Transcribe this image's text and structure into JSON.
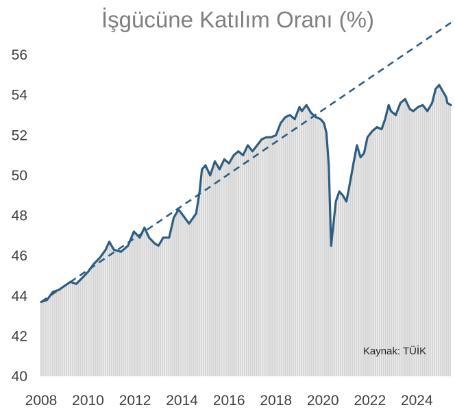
{
  "chart_data": {
    "type": "area",
    "title": "İşgücüne Katılım Oranı (%)",
    "xlabel": "",
    "ylabel": "",
    "source": "Kaynak: TÜİK",
    "ylim": [
      40,
      56
    ],
    "xlim": [
      2008.0,
      2025.45
    ],
    "y_ticks": [
      40,
      42,
      44,
      46,
      48,
      50,
      52,
      54,
      56
    ],
    "x_ticks": [
      2008,
      2010,
      2012,
      2014,
      2016,
      2018,
      2020,
      2022,
      2024
    ],
    "grid": false,
    "legend": "none",
    "series": [
      {
        "style": "monthly bars + line",
        "color": "#2e5c82",
        "fill_color": "#d4d4d4",
        "points": [
          [
            2008.0,
            43.7
          ],
          [
            2008.25,
            43.8
          ],
          [
            2008.5,
            44.2
          ],
          [
            2008.75,
            44.3
          ],
          [
            2009.0,
            44.5
          ],
          [
            2009.25,
            44.7
          ],
          [
            2009.5,
            44.6
          ],
          [
            2009.75,
            44.9
          ],
          [
            2010.0,
            45.2
          ],
          [
            2010.25,
            45.6
          ],
          [
            2010.5,
            45.9
          ],
          [
            2010.75,
            46.3
          ],
          [
            2010.9,
            46.7
          ],
          [
            2011.1,
            46.3
          ],
          [
            2011.4,
            46.2
          ],
          [
            2011.7,
            46.5
          ],
          [
            2011.95,
            47.2
          ],
          [
            2012.2,
            46.9
          ],
          [
            2012.4,
            47.4
          ],
          [
            2012.6,
            46.9
          ],
          [
            2012.85,
            46.6
          ],
          [
            2013.0,
            46.5
          ],
          [
            2013.2,
            46.9
          ],
          [
            2013.45,
            46.9
          ],
          [
            2013.65,
            47.9
          ],
          [
            2013.85,
            48.3
          ],
          [
            2014.05,
            48.0
          ],
          [
            2014.3,
            47.6
          ],
          [
            2014.6,
            48.1
          ],
          [
            2014.75,
            49.2
          ],
          [
            2014.85,
            50.3
          ],
          [
            2015.0,
            50.5
          ],
          [
            2015.2,
            50.0
          ],
          [
            2015.4,
            50.7
          ],
          [
            2015.6,
            50.3
          ],
          [
            2015.8,
            50.8
          ],
          [
            2016.0,
            50.6
          ],
          [
            2016.2,
            51.0
          ],
          [
            2016.4,
            51.2
          ],
          [
            2016.6,
            51.0
          ],
          [
            2016.8,
            51.5
          ],
          [
            2017.0,
            51.2
          ],
          [
            2017.2,
            51.5
          ],
          [
            2017.4,
            51.8
          ],
          [
            2017.6,
            51.9
          ],
          [
            2017.8,
            51.9
          ],
          [
            2018.0,
            52.0
          ],
          [
            2018.2,
            52.6
          ],
          [
            2018.4,
            52.9
          ],
          [
            2018.6,
            53.0
          ],
          [
            2018.8,
            52.8
          ],
          [
            2019.0,
            53.4
          ],
          [
            2019.1,
            53.2
          ],
          [
            2019.3,
            53.5
          ],
          [
            2019.5,
            53.1
          ],
          [
            2019.7,
            52.9
          ],
          [
            2019.9,
            52.8
          ],
          [
            2020.05,
            52.6
          ],
          [
            2020.15,
            52.1
          ],
          [
            2020.25,
            50.5
          ],
          [
            2020.35,
            46.5
          ],
          [
            2020.45,
            47.6
          ],
          [
            2020.55,
            48.7
          ],
          [
            2020.7,
            49.2
          ],
          [
            2020.85,
            49.0
          ],
          [
            2021.0,
            48.7
          ],
          [
            2021.15,
            49.6
          ],
          [
            2021.3,
            50.6
          ],
          [
            2021.45,
            51.5
          ],
          [
            2021.6,
            50.9
          ],
          [
            2021.75,
            51.1
          ],
          [
            2021.9,
            51.9
          ],
          [
            2022.1,
            52.2
          ],
          [
            2022.3,
            52.4
          ],
          [
            2022.5,
            52.3
          ],
          [
            2022.65,
            52.8
          ],
          [
            2022.8,
            53.5
          ],
          [
            2022.9,
            53.2
          ],
          [
            2023.1,
            53.0
          ],
          [
            2023.3,
            53.6
          ],
          [
            2023.5,
            53.8
          ],
          [
            2023.7,
            53.3
          ],
          [
            2023.85,
            53.2
          ],
          [
            2024.05,
            53.4
          ],
          [
            2024.25,
            53.5
          ],
          [
            2024.45,
            53.2
          ],
          [
            2024.65,
            53.6
          ],
          [
            2024.8,
            54.3
          ],
          [
            2024.95,
            54.5
          ],
          [
            2025.1,
            54.2
          ],
          [
            2025.25,
            53.9
          ],
          [
            2025.3,
            53.6
          ],
          [
            2025.45,
            53.5
          ]
        ]
      }
    ],
    "trendline": {
      "style": "dashed",
      "color": "#2e5c82",
      "from": [
        2008.0,
        43.7
      ],
      "to": [
        2025.45,
        57.6
      ]
    }
  }
}
